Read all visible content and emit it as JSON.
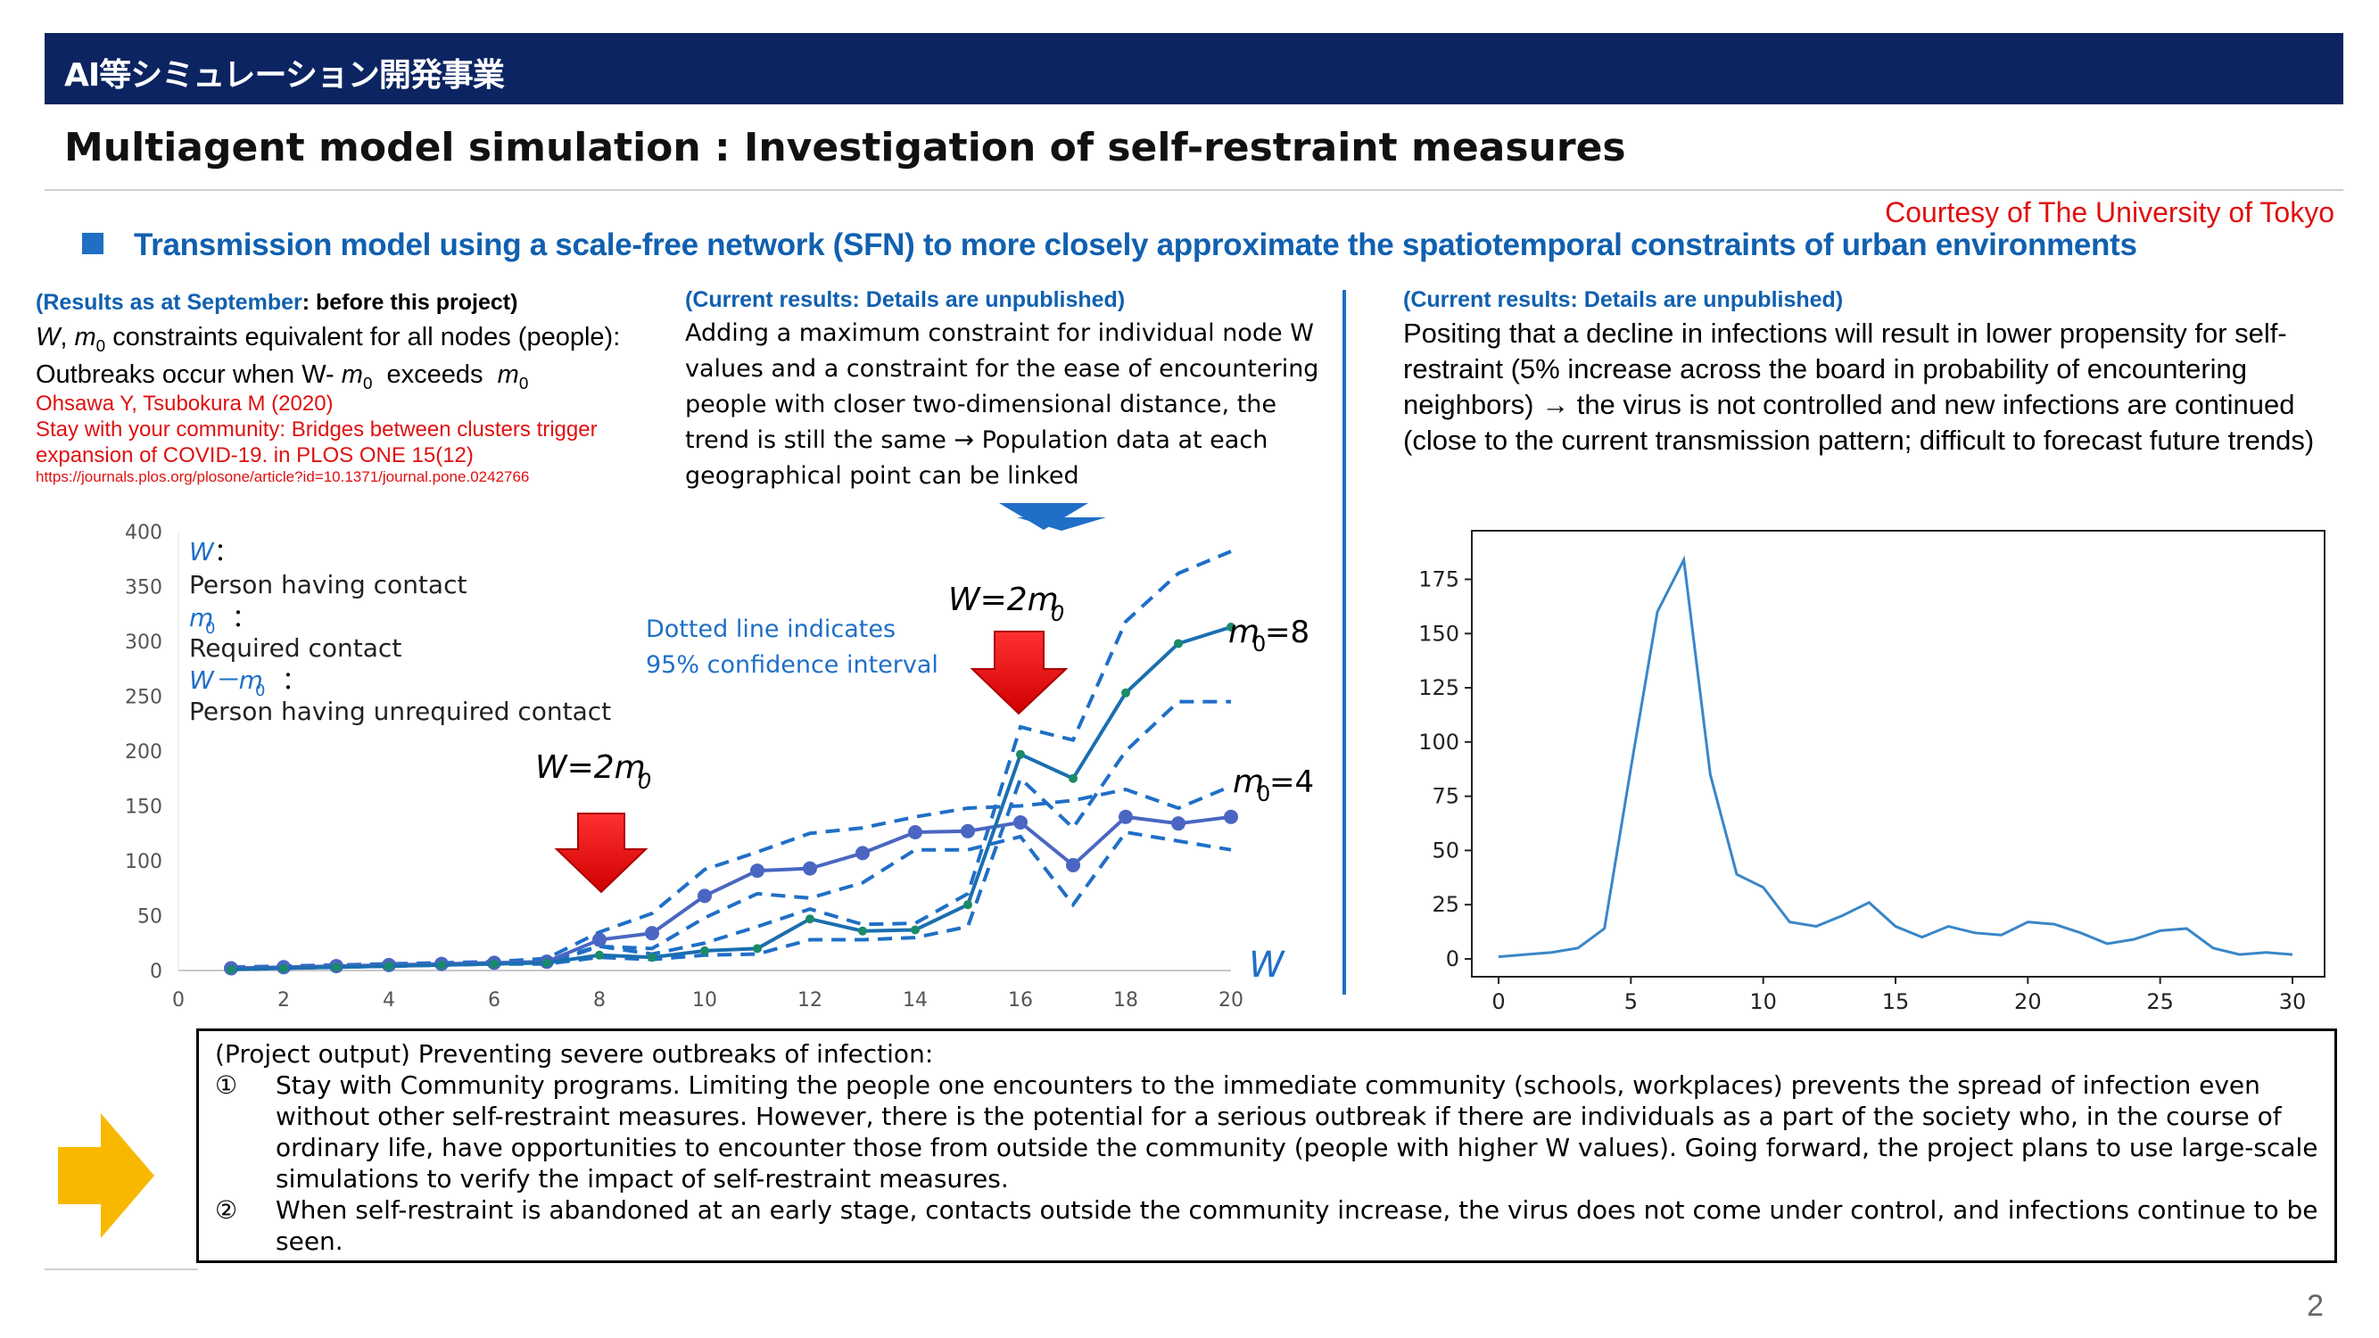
{
  "header": {
    "title": "AI等シミュレーション開発事業"
  },
  "main_title": "Multiagent model simulation : Investigation of self-restraint measures",
  "courtesy": "Courtesy of The University of Tokyo",
  "bullet": "Transmission model using a scale-free network (SFN) to more closely approximate the spatiotemporal constraints of urban environments",
  "col1": {
    "note_blue": "(Results as at September",
    "note_black": ": before this project)",
    "line1_prefix": "W",
    "line1_m": "m",
    "line1_sub": "0",
    "line1_rest": " constraints equivalent for all nodes (people):",
    "line2_a": "Outbreaks occur when W- ",
    "line2_m": "m",
    "line2_sub": "0",
    "line2_b": "  exceeds  ",
    "line2_m2": "m",
    "line2_sub2": "0",
    "ref1": "Ohsawa Y, Tsubokura M (2020)",
    "ref2": "Stay with your community: Bridges between clusters trigger",
    "ref3": "expansion of COVID-19. in PLOS ONE 15(12)",
    "ref_url": "https://journals.plos.org/plosone/article?id=10.1371/journal.pone.0242766"
  },
  "col2": {
    "note": "(Current results: Details are unpublished)",
    "body": "Adding a maximum constraint for individual node W values and a constraint for the ease of encountering people with closer two-dimensional distance, the trend is still the same → Population data at each geographical point can be linked"
  },
  "col3": {
    "note": "(Current results: Details are unpublished)",
    "body": "Positing that a decline in infections will result in lower propensity for self-restraint (5% increase across the board in probability of encountering neighbors) → the virus is not controlled and new infections are continued (close to the current transmission pattern; difficult to forecast future trends)"
  },
  "chart_data": [
    {
      "type": "line",
      "xlim": [
        0,
        20
      ],
      "ylim": [
        0,
        400
      ],
      "xticks": [
        0,
        2,
        4,
        6,
        8,
        10,
        12,
        14,
        16,
        18,
        20
      ],
      "yticks": [
        0,
        50,
        100,
        150,
        200,
        250,
        300,
        350,
        400
      ],
      "xlabel": "W",
      "legend_lines": {
        "w": "W",
        "w_colon": "：",
        "w_desc": "Person having contact",
        "m0": "m",
        "m0_sub": "0",
        "m0_colon": "：",
        "m0_desc": "Required contact",
        "wm0": "W－m",
        "wm0_sub": "0",
        "wm0_colon": "：",
        "wm0_desc": "Person having unrequired contact"
      },
      "annotations": {
        "dotted_1": "Dotted line indicates",
        "dotted_2": "95% confidence interval",
        "w_2m0_a": "W=2m",
        "w_2m0_a_sub": "0",
        "w_2m0_b": "W=2m",
        "w_2m0_b_sub": "0",
        "m0_8": "m",
        "m0_8_sub": "0",
        "m0_8_val": "=8",
        "m0_4": "m",
        "m0_4_sub": "0",
        "m0_4_val": "=4"
      },
      "x": [
        1,
        2,
        3,
        4,
        5,
        6,
        7,
        8,
        9,
        10,
        11,
        12,
        13,
        14,
        15,
        16,
        17,
        18,
        19,
        20
      ],
      "series": [
        {
          "name": "m0=4",
          "values": [
            2,
            3,
            4,
            5,
            6,
            7,
            8,
            28,
            34,
            68,
            91,
            93,
            107,
            126,
            127,
            135,
            96,
            140,
            134,
            140
          ]
        },
        {
          "name": "m0=8",
          "values": [
            1,
            2,
            3,
            4,
            5,
            6,
            7,
            14,
            12,
            18,
            20,
            47,
            36,
            37,
            60,
            197,
            175,
            253,
            298,
            313
          ]
        }
      ],
      "ci_bands": [
        {
          "upper": [
            3,
            4,
            5,
            6,
            7,
            8,
            11,
            35,
            52,
            92,
            108,
            125,
            130,
            140,
            148,
            150,
            155,
            165,
            148,
            168
          ],
          "lower": [
            1,
            2,
            3,
            4,
            5,
            6,
            6,
            22,
            20,
            48,
            70,
            66,
            80,
            110,
            110,
            122,
            60,
            126,
            118,
            110
          ]
        },
        {
          "upper": [
            2,
            3,
            4,
            5,
            6,
            7,
            9,
            22,
            15,
            25,
            40,
            56,
            42,
            43,
            70,
            222,
            210,
            318,
            362,
            382
          ],
          "lower": [
            1,
            2,
            3,
            4,
            5,
            6,
            6,
            12,
            10,
            14,
            15,
            28,
            28,
            30,
            40,
            175,
            130,
            200,
            245,
            245
          ]
        }
      ]
    },
    {
      "type": "line",
      "xlim": [
        0,
        30
      ],
      "ylim": [
        0,
        190
      ],
      "xticks": [
        0,
        5,
        10,
        15,
        20,
        25,
        30
      ],
      "yticks": [
        0,
        25,
        50,
        75,
        100,
        125,
        150,
        175
      ],
      "x": [
        0,
        1,
        2,
        3,
        4,
        5,
        6,
        7,
        8,
        9,
        10,
        11,
        12,
        13,
        14,
        15,
        16,
        17,
        18,
        19,
        20,
        21,
        22,
        23,
        24,
        25,
        26,
        27,
        28,
        29,
        30
      ],
      "values": [
        1,
        2,
        3,
        5,
        14,
        88,
        160,
        184,
        85,
        39,
        33,
        17,
        15,
        20,
        26,
        15,
        10,
        15,
        12,
        11,
        17,
        16,
        12,
        7,
        9,
        13,
        14,
        5,
        2,
        3,
        2
      ]
    }
  ],
  "bottom_box": {
    "heading": "(Project output) Preventing severe outbreaks of infection:",
    "items": [
      {
        "num": "①",
        "text": "Stay with Community programs. Limiting the people one encounters to the immediate community (schools, workplaces) prevents the spread of infection even without other self-restraint measures. However, there is the potential for a serious outbreak if there are individuals as a part of the society who, in the course of ordinary life, have opportunities to encounter those from outside the community (people with higher W values). Going forward, the project plans to use large-scale simulations to verify the impact of self-restraint measures."
      },
      {
        "num": "②",
        "text": "When self-restraint is abandoned at an early stage, contacts outside the community increase, the virus does not come under control, and infections continue to be seen."
      }
    ]
  },
  "page_number": "2",
  "colors": {
    "navy": "#0c2461",
    "blue": "#1f6fc7",
    "series_m4": "#4a66c2",
    "series_m8": "#1a6fb0",
    "ci": "#1f6fc7",
    "red": "#e01010",
    "arrow_yellow": "#f9b800",
    "chart_right_line": "#3a86c8"
  }
}
